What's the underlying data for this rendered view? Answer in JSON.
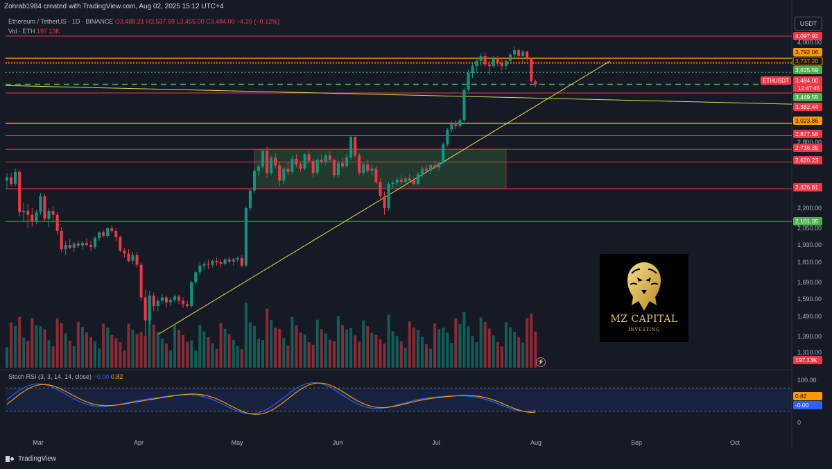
{
  "header": {
    "created_by": "Zohrab1984 created with TradingView.com, Aug 02, 2025 15:12 UTC+4",
    "symbol_line": "Ethereum / TetherUS · 1D · BINANCE",
    "open": "O3,488.21",
    "high": "H3,537.69",
    "low": "L3,455.00",
    "close": "C3,484.00",
    "change": "−4.20 (−0.12%)",
    "vol_label": "Vol · ETH",
    "vol_value": "197.13K"
  },
  "currency": "USDT",
  "rsi_legend": {
    "label": "Stoch RSI (3, 3, 14, 14, close)",
    "k": "−0.00",
    "d": "0.82"
  },
  "brand": "TradingView",
  "logo": {
    "title": "MZ CAPITAL",
    "subtitle": "INVESTING"
  },
  "colors": {
    "bg": "#161a25",
    "up": "#089981",
    "down": "#f23645",
    "hline_red": "#f23645",
    "hline_orange": "#ff9800",
    "hline_green": "#4caf50",
    "trend": "#e0d94a",
    "k_line": "#2962ff",
    "d_line": "#ff9800"
  },
  "chart_data": {
    "type": "candlestick",
    "x_ticks": [
      "Mar",
      "Apr",
      "May",
      "Jun",
      "Jul",
      "Aug",
      "Sep",
      "Oct"
    ],
    "y_ticks": [
      "4,000.00",
      "2,800.00",
      "2,200.00",
      "2,050.00",
      "1,930.00",
      "1,810.00",
      "1,690.00",
      "1,590.00",
      "1,490.00",
      "1,390.00",
      "1,310.00"
    ],
    "rsi_ticks": [
      "100.00",
      "0"
    ],
    "price_labels": [
      {
        "value": "4,097.92",
        "color": "red"
      },
      {
        "value": "3,792.06",
        "color": "orange"
      },
      {
        "value": "3,737.20",
        "color": "outline-orange"
      },
      {
        "value": "3,625.59",
        "color": "green"
      },
      {
        "value": "3,484.00",
        "color": "red",
        "ticker": "ETHUSDT",
        "countdown": "12:47:46"
      },
      {
        "value": "3,449.55",
        "color": "green"
      },
      {
        "value": "3,382.44",
        "color": "red"
      },
      {
        "value": "3,023.86",
        "color": "orange"
      },
      {
        "value": "2,877.58",
        "color": "red"
      },
      {
        "value": "2,736.35",
        "color": "red"
      },
      {
        "value": "2,620.23",
        "color": "red"
      },
      {
        "value": "2,376.81",
        "color": "red"
      },
      {
        "value": "2,101.35",
        "color": "green"
      },
      {
        "value": "197.13K",
        "color": "red"
      },
      {
        "value": "0.82",
        "color": "orange"
      },
      {
        "value": "-0.00",
        "color": "blue"
      }
    ],
    "ohlc_daily": [
      [
        2450,
        2520,
        2380,
        2480
      ],
      [
        2480,
        2520,
        2400,
        2420
      ],
      [
        2420,
        2560,
        2400,
        2530
      ],
      [
        2530,
        2550,
        2140,
        2170
      ],
      [
        2170,
        2250,
        2100,
        2180
      ],
      [
        2180,
        2240,
        2050,
        2150
      ],
      [
        2150,
        2200,
        2060,
        2100
      ],
      [
        2100,
        2190,
        2080,
        2170
      ],
      [
        2170,
        2340,
        2150,
        2310
      ],
      [
        2310,
        2330,
        2100,
        2120
      ],
      [
        2120,
        2200,
        2060,
        2180
      ],
      [
        2180,
        2220,
        2090,
        2150
      ],
      [
        2150,
        2170,
        2000,
        2030
      ],
      [
        2030,
        2060,
        1880,
        1900
      ],
      [
        1900,
        1960,
        1860,
        1930
      ],
      [
        1930,
        1970,
        1900,
        1910
      ],
      [
        1910,
        1950,
        1880,
        1940
      ],
      [
        1940,
        1960,
        1910,
        1925
      ],
      [
        1925,
        1960,
        1900,
        1945
      ],
      [
        1945,
        1980,
        1920,
        1930
      ],
      [
        1930,
        1960,
        1890,
        1915
      ],
      [
        1915,
        1995,
        1900,
        1980
      ],
      [
        1980,
        2030,
        1960,
        2020
      ],
      [
        2020,
        2040,
        1985,
        1995
      ],
      [
        1995,
        2060,
        1980,
        2050
      ],
      [
        2050,
        2070,
        2020,
        2030
      ],
      [
        2030,
        2050,
        1960,
        1985
      ],
      [
        1985,
        2000,
        1880,
        1890
      ],
      [
        1890,
        1910,
        1840,
        1870
      ],
      [
        1870,
        1900,
        1810,
        1820
      ],
      [
        1820,
        1880,
        1800,
        1860
      ],
      [
        1860,
        1880,
        1780,
        1795
      ],
      [
        1795,
        1810,
        1580,
        1600
      ],
      [
        1600,
        1650,
        1390,
        1470
      ],
      [
        1470,
        1640,
        1450,
        1610
      ],
      [
        1610,
        1630,
        1520,
        1550
      ],
      [
        1550,
        1600,
        1520,
        1580
      ],
      [
        1580,
        1620,
        1560,
        1600
      ],
      [
        1600,
        1610,
        1540,
        1570
      ],
      [
        1570,
        1600,
        1550,
        1585
      ],
      [
        1585,
        1620,
        1570,
        1605
      ],
      [
        1605,
        1615,
        1560,
        1580
      ],
      [
        1580,
        1600,
        1540,
        1560
      ],
      [
        1560,
        1580,
        1540,
        1550
      ],
      [
        1550,
        1700,
        1540,
        1690
      ],
      [
        1690,
        1760,
        1680,
        1750
      ],
      [
        1750,
        1810,
        1730,
        1790
      ],
      [
        1790,
        1820,
        1760,
        1800
      ],
      [
        1800,
        1830,
        1770,
        1795
      ],
      [
        1795,
        1830,
        1780,
        1820
      ],
      [
        1820,
        1840,
        1790,
        1810
      ],
      [
        1810,
        1830,
        1780,
        1800
      ],
      [
        1800,
        1840,
        1790,
        1830
      ],
      [
        1830,
        1850,
        1800,
        1815
      ],
      [
        1815,
        1840,
        1790,
        1830
      ],
      [
        1830,
        1850,
        1810,
        1840
      ],
      [
        1840,
        1860,
        1780,
        1790
      ],
      [
        1790,
        2220,
        1780,
        2200
      ],
      [
        2200,
        2380,
        2180,
        2360
      ],
      [
        2360,
        2560,
        2330,
        2540
      ],
      [
        2540,
        2600,
        2500,
        2580
      ],
      [
        2580,
        2740,
        2560,
        2720
      ],
      [
        2720,
        2760,
        2480,
        2520
      ],
      [
        2520,
        2680,
        2500,
        2660
      ],
      [
        2660,
        2700,
        2560,
        2590
      ],
      [
        2590,
        2620,
        2400,
        2450
      ],
      [
        2450,
        2580,
        2420,
        2560
      ],
      [
        2560,
        2620,
        2500,
        2530
      ],
      [
        2530,
        2680,
        2510,
        2650
      ],
      [
        2650,
        2690,
        2570,
        2600
      ],
      [
        2600,
        2620,
        2530,
        2560
      ],
      [
        2560,
        2700,
        2540,
        2690
      ],
      [
        2690,
        2720,
        2600,
        2630
      ],
      [
        2630,
        2650,
        2480,
        2520
      ],
      [
        2520,
        2660,
        2500,
        2640
      ],
      [
        2640,
        2690,
        2600,
        2620
      ],
      [
        2620,
        2700,
        2590,
        2680
      ],
      [
        2680,
        2720,
        2620,
        2640
      ],
      [
        2640,
        2650,
        2480,
        2500
      ],
      [
        2500,
        2640,
        2480,
        2610
      ],
      [
        2610,
        2660,
        2560,
        2580
      ],
      [
        2580,
        2690,
        2570,
        2660
      ],
      [
        2660,
        2880,
        2640,
        2860
      ],
      [
        2860,
        2870,
        2660,
        2680
      ],
      [
        2680,
        2700,
        2500,
        2520
      ],
      [
        2520,
        2620,
        2500,
        2600
      ],
      [
        2600,
        2640,
        2520,
        2540
      ],
      [
        2540,
        2600,
        2500,
        2560
      ],
      [
        2560,
        2580,
        2420,
        2440
      ],
      [
        2440,
        2470,
        2290,
        2310
      ],
      [
        2310,
        2350,
        2150,
        2200
      ],
      [
        2200,
        2440,
        2180,
        2420
      ],
      [
        2420,
        2450,
        2380,
        2430
      ],
      [
        2430,
        2480,
        2400,
        2460
      ],
      [
        2460,
        2500,
        2420,
        2440
      ],
      [
        2440,
        2480,
        2410,
        2470
      ],
      [
        2470,
        2510,
        2430,
        2450
      ],
      [
        2450,
        2480,
        2410,
        2420
      ],
      [
        2420,
        2530,
        2410,
        2510
      ],
      [
        2510,
        2580,
        2480,
        2560
      ],
      [
        2560,
        2590,
        2520,
        2540
      ],
      [
        2540,
        2600,
        2510,
        2590
      ],
      [
        2590,
        2630,
        2550,
        2570
      ],
      [
        2570,
        2620,
        2540,
        2610
      ],
      [
        2610,
        2800,
        2600,
        2780
      ],
      [
        2780,
        2970,
        2760,
        2950
      ],
      [
        2950,
        3050,
        2920,
        3010
      ],
      [
        3010,
        3060,
        2950,
        2990
      ],
      [
        2990,
        3080,
        2970,
        3060
      ],
      [
        3060,
        3450,
        3040,
        3420
      ],
      [
        3420,
        3660,
        3400,
        3620
      ],
      [
        3620,
        3750,
        3560,
        3700
      ],
      [
        3700,
        3800,
        3620,
        3760
      ],
      [
        3760,
        3860,
        3700,
        3820
      ],
      [
        3820,
        3870,
        3690,
        3720
      ],
      [
        3720,
        3760,
        3600,
        3700
      ],
      [
        3700,
        3820,
        3680,
        3790
      ],
      [
        3790,
        3820,
        3700,
        3740
      ],
      [
        3740,
        3790,
        3650,
        3700
      ],
      [
        3700,
        3780,
        3660,
        3760
      ],
      [
        3760,
        3860,
        3740,
        3840
      ],
      [
        3840,
        3940,
        3800,
        3900
      ],
      [
        3900,
        3920,
        3780,
        3820
      ],
      [
        3820,
        3900,
        3750,
        3880
      ],
      [
        3880,
        3890,
        3760,
        3790
      ],
      [
        3790,
        3800,
        3500,
        3520
      ],
      [
        3520,
        3540,
        3455,
        3484
      ]
    ]
  }
}
